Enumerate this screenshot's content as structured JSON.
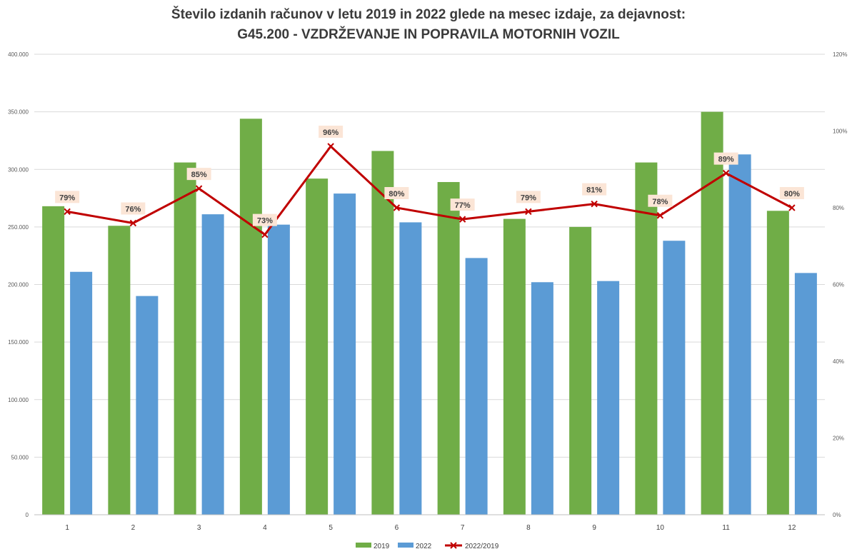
{
  "chart_data": {
    "type": "bar",
    "title_line1": "Število izdanih računov v letu 2019 in 2022 glede na mesec izdaje, za dejavnost:",
    "title_line2": "G45.200 - VZDRŽEVANJE IN POPRAVILA MOTORNIH VOZIL",
    "categories": [
      "1",
      "2",
      "3",
      "4",
      "5",
      "6",
      "7",
      "8",
      "9",
      "10",
      "11",
      "12"
    ],
    "y_left": {
      "min": 0,
      "max": 400000,
      "ticks": [
        0,
        50000,
        100000,
        150000,
        200000,
        250000,
        300000,
        350000,
        400000
      ],
      "tick_labels": [
        "0",
        "50.000",
        "100.000",
        "150.000",
        "200.000",
        "250.000",
        "300.000",
        "350.000",
        "400.000"
      ]
    },
    "y_right": {
      "min": 0,
      "max": 1.2,
      "ticks": [
        0,
        0.2,
        0.4,
        0.6,
        0.8,
        1.0,
        1.2
      ],
      "tick_labels": [
        "0%",
        "20%",
        "40%",
        "60%",
        "80%",
        "100%",
        "120%"
      ]
    },
    "grid": true,
    "legend_position": "bottom",
    "series": [
      {
        "name": "2019",
        "kind": "bar",
        "color": "#70ad47",
        "axis": "left",
        "values": [
          268000,
          251000,
          306000,
          344000,
          292000,
          316000,
          289000,
          257000,
          250000,
          306000,
          350000,
          264000
        ]
      },
      {
        "name": "2022",
        "kind": "bar",
        "color": "#5b9bd5",
        "axis": "left",
        "values": [
          211000,
          190000,
          261000,
          252000,
          279000,
          254000,
          223000,
          202000,
          203000,
          238000,
          313000,
          210000
        ]
      },
      {
        "name": "2022/2019",
        "kind": "line",
        "color": "#c00000",
        "axis": "right",
        "values": [
          0.79,
          0.76,
          0.85,
          0.73,
          0.96,
          0.8,
          0.77,
          0.79,
          0.81,
          0.78,
          0.89,
          0.8
        ],
        "labels": [
          "79%",
          "76%",
          "85%",
          "73%",
          "96%",
          "80%",
          "77%",
          "79%",
          "81%",
          "78%",
          "89%",
          "80%"
        ]
      }
    ]
  }
}
